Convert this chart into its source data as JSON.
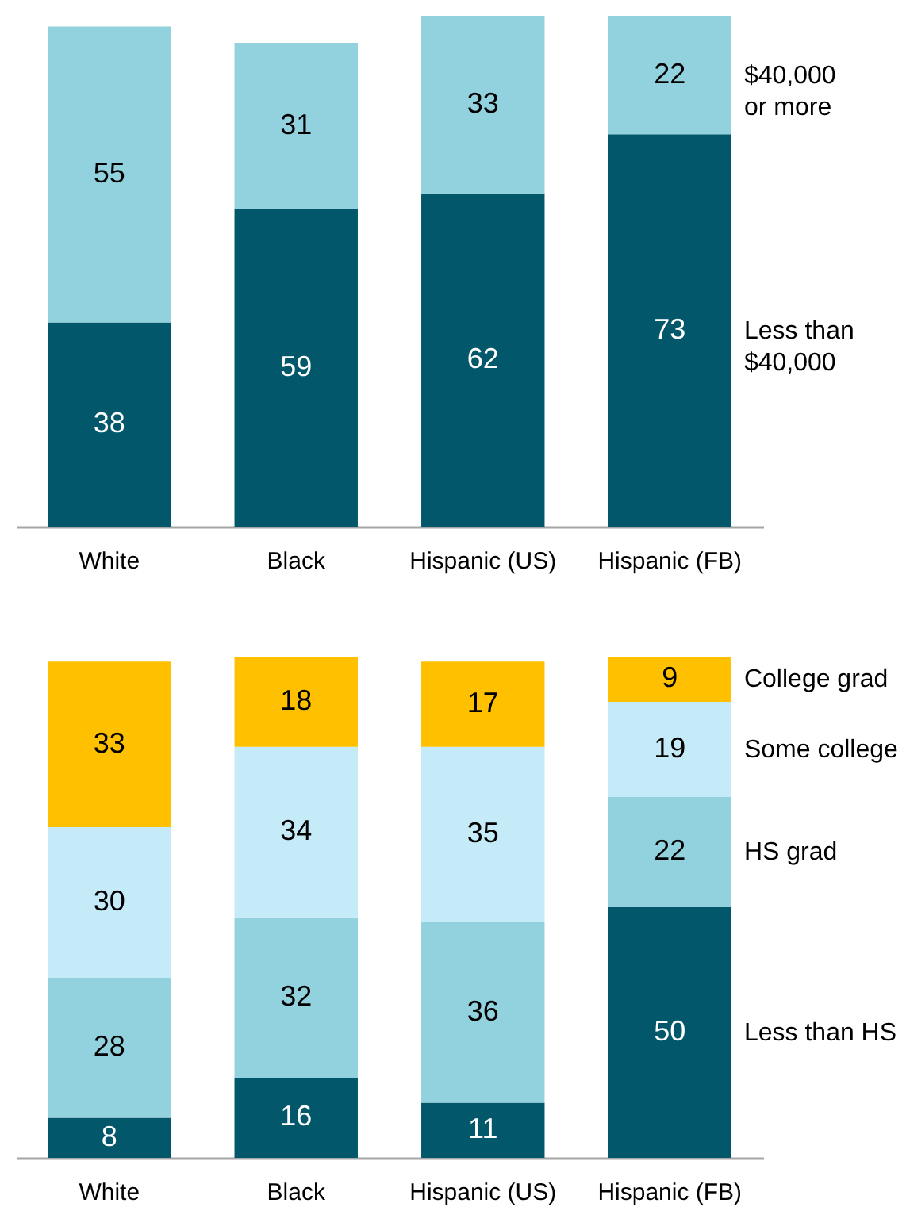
{
  "chart_data": [
    {
      "type": "bar",
      "stacked": true,
      "categories": [
        "White",
        "Black",
        "Hispanic (US)",
        "Hispanic (FB)"
      ],
      "series": [
        {
          "name": "Less than\n$40,000",
          "color": "#02586a",
          "values": [
            38,
            59,
            62,
            73
          ]
        },
        {
          "name": "$40,000\nor more",
          "color": "#92d2de",
          "values": [
            55,
            31,
            33,
            22
          ]
        }
      ],
      "data_labels": true,
      "tick_labels": "x"
    },
    {
      "type": "bar",
      "stacked": true,
      "categories": [
        "White",
        "Black",
        "Hispanic (US)",
        "Hispanic (FB)"
      ],
      "series": [
        {
          "name": "Less than HS",
          "color": "#02586a",
          "values": [
            8,
            16,
            11,
            50
          ]
        },
        {
          "name": "HS grad",
          "color": "#92d2de",
          "values": [
            28,
            32,
            36,
            22
          ]
        },
        {
          "name": "Some college",
          "color": "#c4ebf7",
          "values": [
            30,
            34,
            35,
            19
          ]
        },
        {
          "name": "College grad",
          "color": "#ffc000",
          "values": [
            33,
            18,
            17,
            9
          ]
        }
      ],
      "data_labels": true,
      "tick_labels": "x"
    }
  ]
}
